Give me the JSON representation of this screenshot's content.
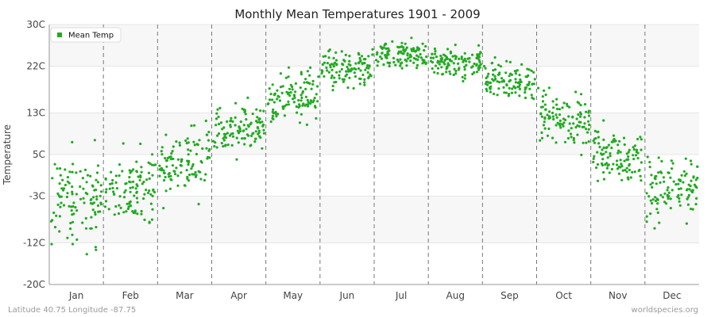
{
  "chart_data": {
    "type": "scatter",
    "title": "Monthly Mean Temperatures 1901 - 2009",
    "ylabel": "Temperature",
    "xlabel": "",
    "categories": [
      "Jan",
      "Feb",
      "Mar",
      "Apr",
      "May",
      "Jun",
      "Jul",
      "Aug",
      "Sep",
      "Oct",
      "Nov",
      "Dec"
    ],
    "y_ticks": [
      "30C",
      "22C",
      "13C",
      "5C",
      "-3C",
      "-12C",
      "-20C"
    ],
    "y_tick_values": [
      30,
      22,
      13,
      5,
      -3,
      -12,
      -20
    ],
    "ylim": [
      -20,
      30
    ],
    "legend": {
      "label": "Mean Temp",
      "placement": "top-left"
    },
    "series": [
      {
        "name": "Mean Temp",
        "color": "#22aa22",
        "monthly_center": [
          -3.5,
          -1.5,
          3.2,
          9.8,
          16.2,
          21.9,
          24.0,
          22.6,
          18.9,
          12.0,
          4.5,
          -1.5
        ],
        "monthly_spread": [
          3.6,
          3.2,
          3.0,
          2.3,
          2.3,
          1.8,
          1.4,
          1.4,
          1.6,
          2.3,
          2.3,
          3.0
        ],
        "points_per_month": 109
      }
    ],
    "grid": "horizontal bands",
    "month_separators": "dashed"
  },
  "footer": {
    "location": "Latitude 40.75 Longitude -87.75",
    "site": "worldspecies.org"
  }
}
